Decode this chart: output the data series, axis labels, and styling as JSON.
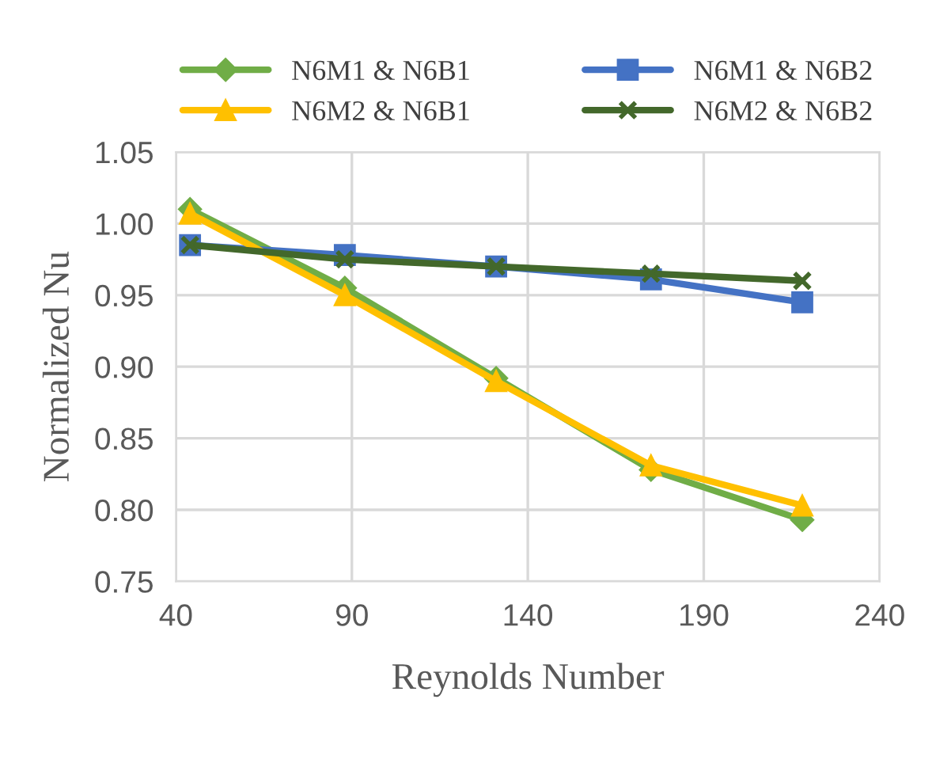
{
  "chart_data": {
    "type": "line",
    "xlabel": "Reynolds Number",
    "ylabel": "Normalized Nu",
    "x": [
      44,
      88,
      131,
      175,
      218
    ],
    "series": [
      {
        "name": "N6M1 & N6B1",
        "color": "#70ad47",
        "marker": "diamond",
        "values": [
          1.01,
          0.955,
          0.892,
          0.828,
          0.793
        ]
      },
      {
        "name": "N6M1 & N6B2",
        "color": "#4472c4",
        "marker": "square",
        "values": [
          0.985,
          0.978,
          0.97,
          0.961,
          0.945
        ]
      },
      {
        "name": "N6M2 & N6B1",
        "color": "#ffc000",
        "marker": "triangle",
        "values": [
          1.007,
          0.95,
          0.89,
          0.831,
          0.803
        ]
      },
      {
        "name": "N6M2 & N6B2",
        "color": "#43682b",
        "marker": "cross",
        "values": [
          0.985,
          0.975,
          0.97,
          0.965,
          0.96
        ]
      }
    ],
    "xlim": [
      40,
      240
    ],
    "xticks": [
      40,
      90,
      140,
      190,
      240
    ],
    "ylim": [
      0.75,
      1.05
    ],
    "yticks": [
      {
        "value": 0.75,
        "label": "0.75"
      },
      {
        "value": 0.8,
        "label": "0.80"
      },
      {
        "value": 0.85,
        "label": "0.85"
      },
      {
        "value": 0.9,
        "label": "0.90"
      },
      {
        "value": 0.95,
        "label": "0.95"
      },
      {
        "value": 1.0,
        "label": "1.00"
      },
      {
        "value": 1.05,
        "label": "1.05"
      }
    ],
    "grid": true,
    "legend": "top"
  }
}
